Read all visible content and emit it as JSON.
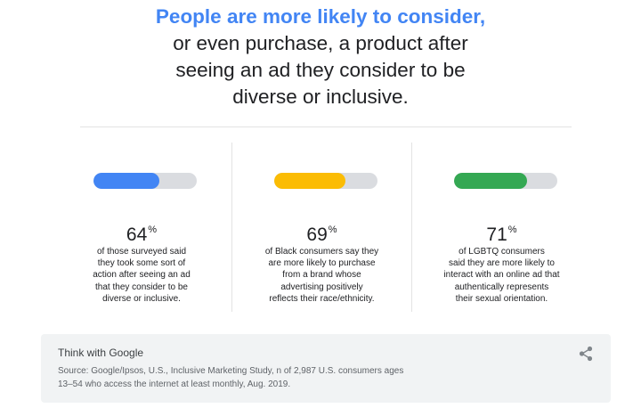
{
  "headline": {
    "highlight": "People are more likely to consider,",
    "lines": [
      "or even purchase, a product after",
      "seeing an ad they consider to be",
      "diverse or inclusive."
    ]
  },
  "stats": [
    {
      "value": "64",
      "unit": "%",
      "fraction": 0.64,
      "bar_color": "#4285f4",
      "description": [
        "of those surveyed said",
        "they took some sort of",
        "action after seeing an ad",
        "that they consider to be",
        "diverse or inclusive."
      ]
    },
    {
      "value": "69",
      "unit": "%",
      "fraction": 0.69,
      "bar_color": "#fbbc04",
      "description": [
        "of Black consumers say they",
        "are more likely to purchase",
        "from a brand whose",
        "advertising positively",
        "reflects their race/ethnicity."
      ]
    },
    {
      "value": "71",
      "unit": "%",
      "fraction": 0.71,
      "bar_color": "#34a853",
      "description": [
        "of LGBTQ consumers",
        "said they are more likely to",
        "interact with an online ad that",
        "authentically represents",
        "their sexual orientation."
      ]
    }
  ],
  "footer": {
    "brand": "Think with Google",
    "source": [
      "Source: Google/Ipsos, U.S., Inclusive Marketing Study, n of 2,987 U.S. consumers ages",
      "13–54 who access the internet at least monthly, Aug. 2019."
    ],
    "share_icon": "share-icon"
  }
}
